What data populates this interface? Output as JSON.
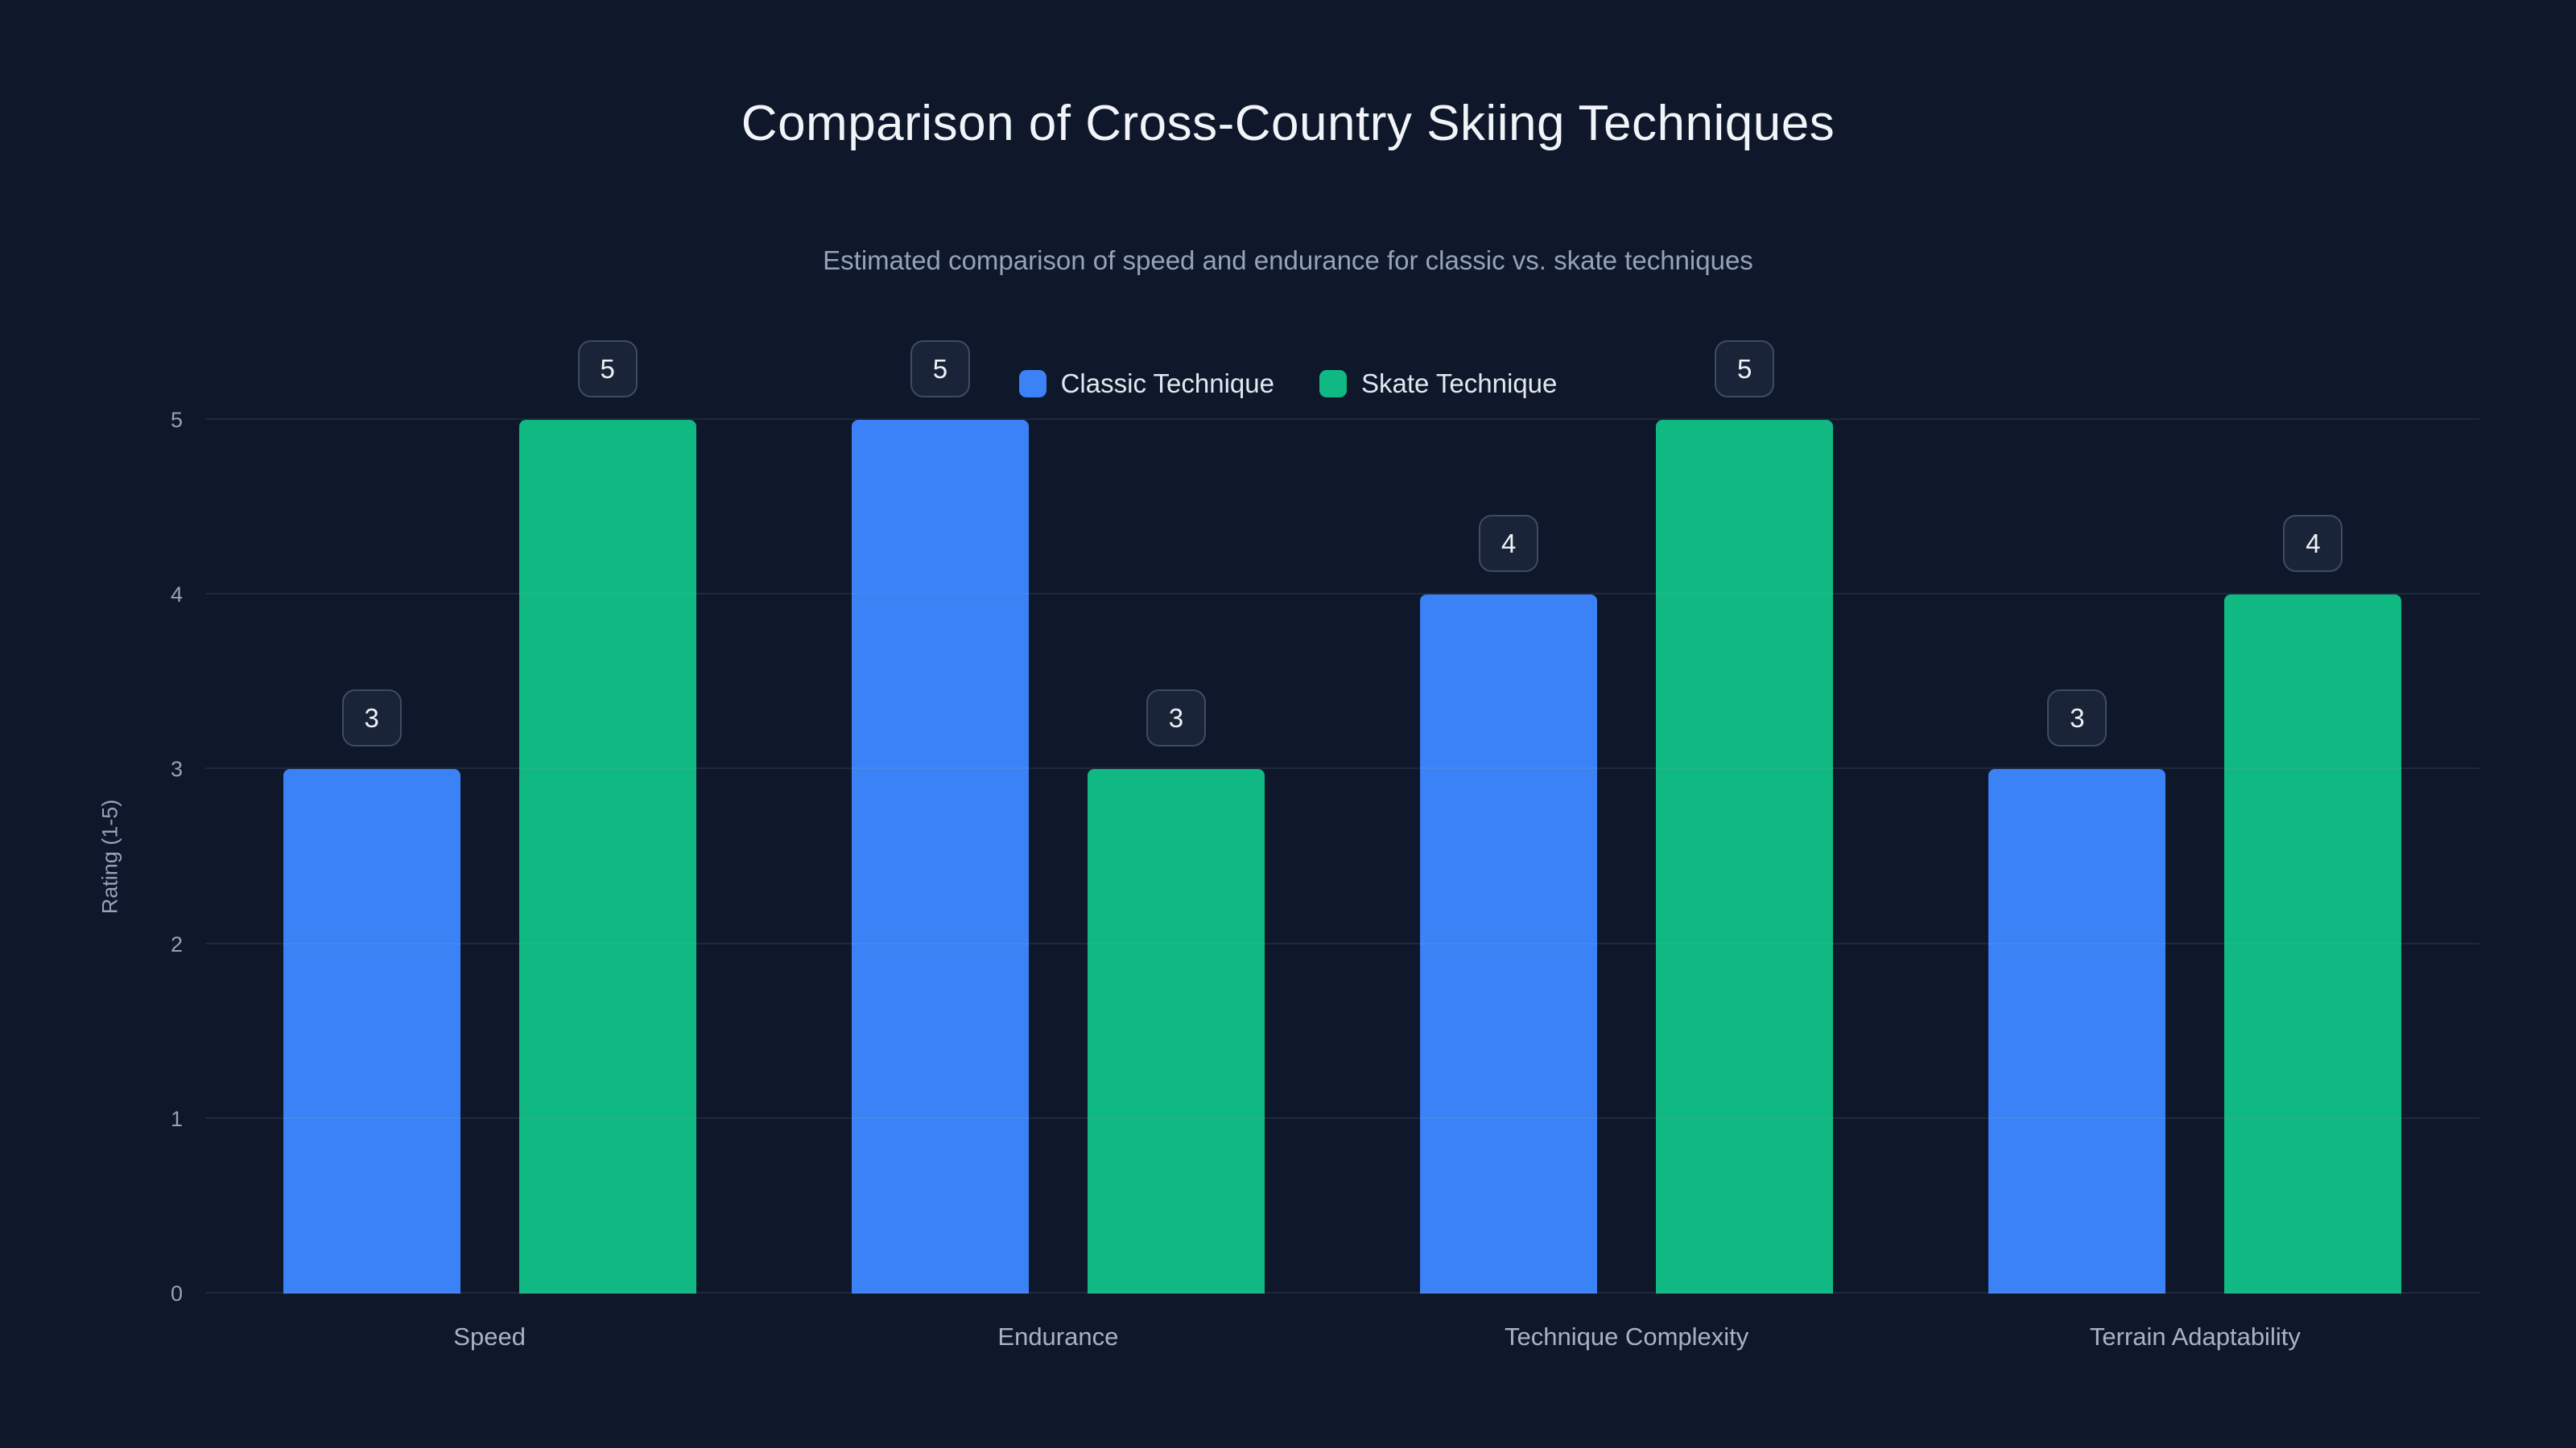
{
  "chart_data": {
    "type": "bar",
    "title": "Comparison of Cross-Country Skiing Techniques",
    "subtitle": "Estimated comparison of speed and endurance for classic vs. skate techniques",
    "categories": [
      "Speed",
      "Endurance",
      "Technique Complexity",
      "Terrain Adaptability"
    ],
    "series": [
      {
        "name": "Classic Technique",
        "color": "#3b82f6",
        "values": [
          3,
          5,
          4,
          3
        ]
      },
      {
        "name": "Skate Technique",
        "color": "#10b981",
        "values": [
          5,
          3,
          5,
          4
        ]
      }
    ],
    "ylabel": "Rating (1-5)",
    "ylim": [
      0,
      5
    ],
    "yticks": [
      0,
      1,
      2,
      3,
      4,
      5
    ],
    "grid": true,
    "legend_position": "top",
    "value_labels": true
  },
  "theme": {
    "background": "#0f172a",
    "title_color": "#f1f5f9",
    "subtitle_color": "#94a3b8",
    "axis_color": "#94a3b8",
    "gridline_color": "rgba(148,163,184,0.13)",
    "badge_background": "#1a2438",
    "badge_border": "#3e4b66"
  }
}
